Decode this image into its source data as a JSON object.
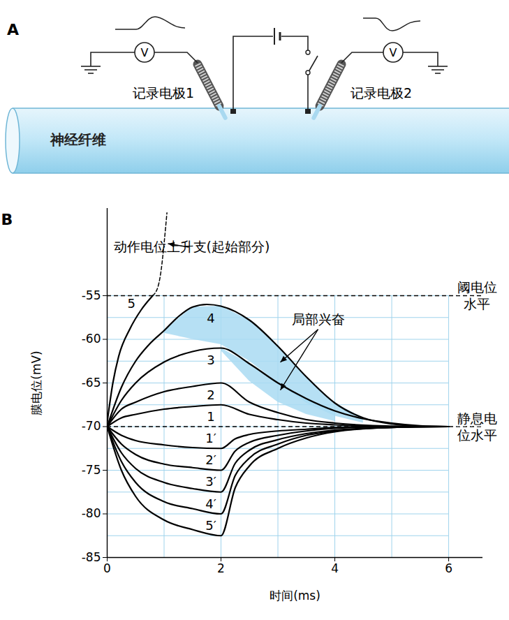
{
  "diagram": {
    "panel_label": "A",
    "fiber_label": "神经纤维",
    "electrodes": [
      "记录电极1",
      "记录电极2"
    ],
    "meter_symbol": "V"
  },
  "chart_data": {
    "type": "line",
    "panel_label": "B",
    "x_label": "时间(ms)",
    "y_label": "膜电位(mV)",
    "xlim": [
      0,
      6.6
    ],
    "ylim": [
      -85,
      -45
    ],
    "xticks": [
      0,
      2,
      4,
      6
    ],
    "yticks": [
      -85,
      -80,
      -75,
      -70,
      -65,
      -60,
      -55
    ],
    "grid": true,
    "series": [
      {
        "name": "5",
        "color": "#000000",
        "line_style": "solid",
        "x": [
          0,
          0.1,
          0.2,
          0.4,
          0.6,
          0.8
        ],
        "values": [
          -69.5,
          -65,
          -62,
          -58.8,
          -56.6,
          -55
        ]
      },
      {
        "name": "动作电位上升支(起始部分)",
        "color": "#000000",
        "line_style": "dashed",
        "x": [
          0.8,
          0.9,
          0.95,
          1.0,
          1.05
        ],
        "values": [
          -55,
          -53.8,
          -52,
          -49,
          -45.5
        ]
      },
      {
        "name": "4",
        "color": "#000000",
        "line_style": "solid",
        "x": [
          0,
          0.25,
          0.5,
          0.75,
          1,
          1.25,
          1.5,
          1.75,
          2,
          2.5,
          3,
          3.5,
          4,
          4.5,
          5,
          5.5,
          6
        ],
        "values": [
          -70,
          -65.5,
          -62.5,
          -60.5,
          -59,
          -57.4,
          -56.3,
          -56,
          -56.2,
          -57.8,
          -60.8,
          -64.3,
          -67.3,
          -69,
          -69.7,
          -69.95,
          -70
        ]
      },
      {
        "name": "3",
        "color": "#000000",
        "line_style": "solid",
        "x": [
          0,
          0.25,
          0.5,
          1,
          1.5,
          2,
          2.5,
          3,
          3.5,
          4,
          4.5,
          5,
          5.5,
          6
        ],
        "values": [
          -70,
          -67,
          -65,
          -62.6,
          -61.4,
          -61,
          -62.8,
          -65,
          -66.8,
          -68.2,
          -69.1,
          -69.6,
          -69.9,
          -70
        ]
      },
      {
        "name": "2",
        "color": "#000000",
        "line_style": "solid",
        "x": [
          0,
          0.25,
          0.5,
          1,
          1.5,
          2,
          2.5,
          3,
          3.5,
          4,
          5,
          6
        ],
        "values": [
          -70,
          -68,
          -67.2,
          -66,
          -65.4,
          -65,
          -67.2,
          -68.4,
          -69.2,
          -69.6,
          -69.95,
          -70
        ]
      },
      {
        "name": "1",
        "color": "#000000",
        "line_style": "solid",
        "x": [
          0,
          0.25,
          0.5,
          1,
          1.5,
          2,
          2.5,
          3,
          3.5,
          4,
          5,
          6
        ],
        "values": [
          -70,
          -69,
          -68.6,
          -68,
          -67.7,
          -67.5,
          -68.6,
          -69.2,
          -69.6,
          -69.8,
          -70,
          -70
        ]
      },
      {
        "name": "1′",
        "color": "#000000",
        "line_style": "solid",
        "x": [
          0,
          0.25,
          0.5,
          1,
          1.5,
          2,
          2.25,
          2.5,
          3,
          3.5,
          4,
          5,
          6
        ],
        "values": [
          -70,
          -71,
          -71.6,
          -72.1,
          -72.4,
          -72.5,
          -71.4,
          -70.9,
          -70.5,
          -70.3,
          -70.1,
          -70,
          -70
        ]
      },
      {
        "name": "2′",
        "color": "#000000",
        "line_style": "solid",
        "x": [
          0,
          0.25,
          0.5,
          1,
          1.5,
          2,
          2.25,
          2.5,
          3,
          3.5,
          4,
          5,
          6
        ],
        "values": [
          -70,
          -72,
          -73.2,
          -74.3,
          -74.7,
          -75,
          -72.8,
          -71.8,
          -71,
          -70.5,
          -70.2,
          -70,
          -70
        ]
      },
      {
        "name": "3′",
        "color": "#000000",
        "line_style": "solid",
        "x": [
          0,
          0.25,
          0.5,
          1,
          1.5,
          2,
          2.25,
          2.5,
          3,
          3.5,
          4,
          5,
          6
        ],
        "values": [
          -70,
          -73,
          -74.8,
          -76.4,
          -77.1,
          -77.5,
          -74.2,
          -72.7,
          -71.5,
          -70.8,
          -70.4,
          -70.1,
          -70
        ]
      },
      {
        "name": "4′",
        "color": "#000000",
        "line_style": "solid",
        "x": [
          0,
          0.25,
          0.5,
          1,
          1.5,
          2,
          2.25,
          2.5,
          3,
          3.5,
          4,
          5,
          6
        ],
        "values": [
          -70,
          -74,
          -76.4,
          -78.6,
          -79.4,
          -80,
          -75.6,
          -73.6,
          -72,
          -71,
          -70.5,
          -70.1,
          -70
        ]
      },
      {
        "name": "5′",
        "color": "#000000",
        "line_style": "solid",
        "x": [
          0,
          0.25,
          0.5,
          1,
          1.5,
          2,
          2.25,
          2.5,
          3,
          3.5,
          4,
          5,
          6
        ],
        "values": [
          -70,
          -75,
          -78,
          -80.7,
          -81.8,
          -82.5,
          -77,
          -74.5,
          -72.5,
          -71.3,
          -70.6,
          -70.1,
          -70
        ]
      }
    ],
    "reference_lines": [
      {
        "value": -55,
        "label": [
          "阈电位",
          "水平"
        ],
        "line_style": "dashed"
      },
      {
        "value": -70,
        "label": [
          "静息电",
          "位水平"
        ],
        "line_style": "dashed"
      }
    ],
    "shaded_label": "局部兴奋",
    "shaded_regions": [
      {
        "color": "#a9daf2",
        "x": [
          1,
          1.5,
          2,
          2.5,
          3,
          3.5,
          4,
          4.5
        ],
        "upper": [
          -59,
          -56.3,
          -56.2,
          -57.8,
          -60.8,
          -64.3,
          -67.3,
          -69
        ],
        "lower": [
          -59.3,
          -60,
          -60.6,
          -62.5,
          -65,
          -67.3,
          -68.8,
          -69.6
        ]
      },
      {
        "color": "#a9daf2",
        "x": [
          2,
          2.5,
          3,
          3.5,
          4
        ],
        "upper": [
          -61,
          -62.8,
          -65,
          -66.8,
          -68.2
        ],
        "lower": [
          -61.3,
          -64.8,
          -67.2,
          -68.6,
          -69.4
        ]
      }
    ]
  }
}
